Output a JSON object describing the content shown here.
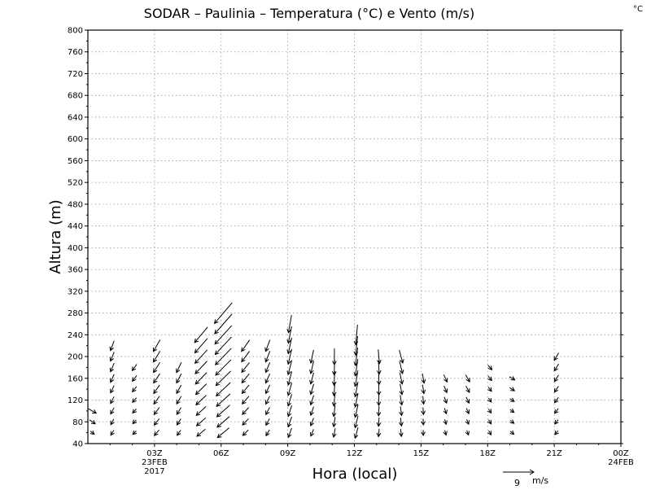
{
  "chart_data": {
    "type": "scatter",
    "title": "SODAR – Paulinia – Temperatura (°C) e Vento (m/s)",
    "corner_unit": "°C",
    "xlabel": "Hora (local)",
    "ylabel": "Altura (m)",
    "ylim": [
      40,
      800
    ],
    "xlim": [
      0,
      24
    ],
    "yticks": [
      40,
      80,
      120,
      160,
      200,
      240,
      280,
      320,
      360,
      400,
      440,
      480,
      520,
      560,
      600,
      640,
      680,
      720,
      760,
      800
    ],
    "xticks": [
      {
        "x": 3,
        "label": "03Z",
        "sub1": "23FEB",
        "sub2": "2017"
      },
      {
        "x": 6,
        "label": "06Z",
        "sub1": "",
        "sub2": ""
      },
      {
        "x": 9,
        "label": "09Z",
        "sub1": "",
        "sub2": ""
      },
      {
        "x": 12,
        "label": "12Z",
        "sub1": "",
        "sub2": ""
      },
      {
        "x": 15,
        "label": "15Z",
        "sub1": "",
        "sub2": ""
      },
      {
        "x": 18,
        "label": "18Z",
        "sub1": "",
        "sub2": ""
      },
      {
        "x": 21,
        "label": "21Z",
        "sub1": "",
        "sub2": ""
      },
      {
        "x": 24,
        "label": "00Z",
        "sub1": "24FEB",
        "sub2": ""
      }
    ],
    "grid": true,
    "reference_vector": {
      "speed": 9,
      "unit": "m/s"
    },
    "wind_series": [
      {
        "x": 0.2,
        "top": 100,
        "dir": 300,
        "speed": 2.0
      },
      {
        "x": 1.1,
        "top": 230,
        "dir": 20,
        "speed": 2.4
      },
      {
        "x": 2.1,
        "top": 190,
        "dir": 35,
        "speed": 1.8
      },
      {
        "x": 3.1,
        "top": 220,
        "dir": 30,
        "speed": 3.0
      },
      {
        "x": 4.1,
        "top": 190,
        "dir": 25,
        "speed": 2.6
      },
      {
        "x": 5.1,
        "top": 240,
        "dir": 40,
        "speed": 4.5
      },
      {
        "x": 6.1,
        "top": 290,
        "dir": 40,
        "speed": 6.2
      },
      {
        "x": 7.1,
        "top": 230,
        "dir": 35,
        "speed": 3.2
      },
      {
        "x": 8.1,
        "top": 230,
        "dir": 20,
        "speed": 2.8
      },
      {
        "x": 9.1,
        "top": 260,
        "dir": 10,
        "speed": 4.0
      },
      {
        "x": 10.1,
        "top": 200,
        "dir": 12,
        "speed": 3.0
      },
      {
        "x": 11.1,
        "top": 200,
        "dir": 0,
        "speed": 3.6
      },
      {
        "x": 12.1,
        "top": 240,
        "dir": 5,
        "speed": 4.5
      },
      {
        "x": 13.1,
        "top": 200,
        "dir": 355,
        "speed": 3.2
      },
      {
        "x": 14.1,
        "top": 200,
        "dir": 345,
        "speed": 3.0
      },
      {
        "x": 15.1,
        "top": 160,
        "dir": 350,
        "speed": 2.2
      },
      {
        "x": 16.1,
        "top": 160,
        "dir": 335,
        "speed": 1.8
      },
      {
        "x": 17.1,
        "top": 160,
        "dir": 330,
        "speed": 1.8
      },
      {
        "x": 18.1,
        "top": 180,
        "dir": 320,
        "speed": 1.4
      },
      {
        "x": 19.1,
        "top": 160,
        "dir": 300,
        "speed": 1.4
      },
      {
        "x": 21.1,
        "top": 210,
        "dir": 30,
        "speed": 2.0
      }
    ]
  }
}
